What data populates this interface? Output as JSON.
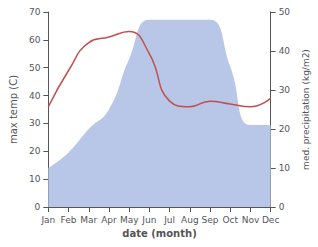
{
  "chart_data": {
    "type": "line",
    "xlabel": "date (month)",
    "ylabel": "max temp (C)",
    "y2label": "med. precipitation (kg/m2)",
    "categories": [
      "Jan",
      "Feb",
      "Mar",
      "Apr",
      "May",
      "Jun",
      "Jul",
      "Aug",
      "Sep",
      "Oct",
      "Nov",
      "Dec"
    ],
    "series": [
      {
        "type": "area",
        "axis": "y2",
        "color": "#b8c7e8",
        "values": [
          10,
          14,
          20,
          25,
          38,
          48,
          48,
          48,
          48,
          36,
          21,
          21
        ]
      },
      {
        "type": "line",
        "axis": "y",
        "color": "#c0504d",
        "values": [
          36,
          49,
          59,
          61,
          63,
          55,
          38,
          36,
          38,
          37,
          36,
          39
        ]
      }
    ],
    "ylim": [
      0,
      70
    ],
    "yticks": [
      0,
      10,
      20,
      30,
      40,
      50,
      60,
      70
    ],
    "y2lim": [
      0,
      50
    ],
    "y2ticks": [
      0,
      10,
      20,
      30,
      40,
      50
    ],
    "grid": false
  }
}
